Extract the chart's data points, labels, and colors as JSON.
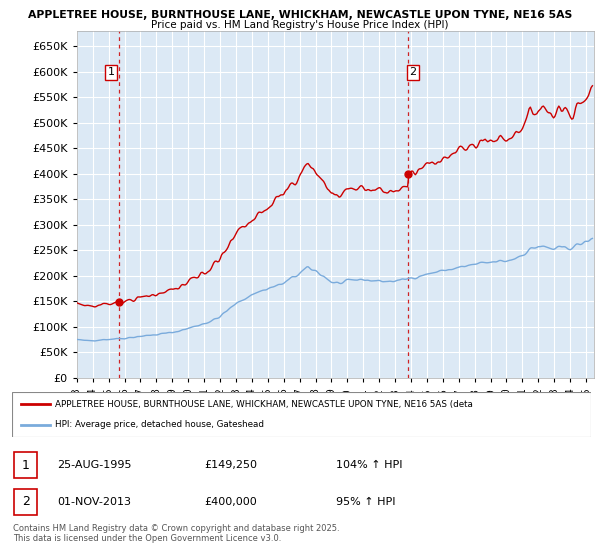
{
  "title1": "APPLETREE HOUSE, BURNTHOUSE LANE, WHICKHAM, NEWCASTLE UPON TYNE, NE16 5AS",
  "title2": "Price paid vs. HM Land Registry's House Price Index (HPI)",
  "ylim": [
    0,
    680000
  ],
  "yticks": [
    0,
    50000,
    100000,
    150000,
    200000,
    250000,
    300000,
    350000,
    400000,
    450000,
    500000,
    550000,
    600000,
    650000
  ],
  "xlim_start": 1993.0,
  "xlim_end": 2025.5,
  "legend_line1": "APPLETREE HOUSE, BURNTHOUSE LANE, WHICKHAM, NEWCASTLE UPON TYNE, NE16 5AS (deta",
  "legend_line2": "HPI: Average price, detached house, Gateshead",
  "sale1_date": "25-AUG-1995",
  "sale1_price": "£149,250",
  "sale1_hpi": "104% ↑ HPI",
  "sale2_date": "01-NOV-2013",
  "sale2_price": "£400,000",
  "sale2_hpi": "95% ↑ HPI",
  "footnote": "Contains HM Land Registry data © Crown copyright and database right 2025.\nThis data is licensed under the Open Government Licence v3.0.",
  "sale1_x": 1995.646,
  "sale1_y": 149250,
  "sale2_x": 2013.836,
  "sale2_y": 400000,
  "red_color": "#cc0000",
  "blue_color": "#7aabdc",
  "bg_color": "#dce9f5",
  "grid_color": "#ffffff"
}
